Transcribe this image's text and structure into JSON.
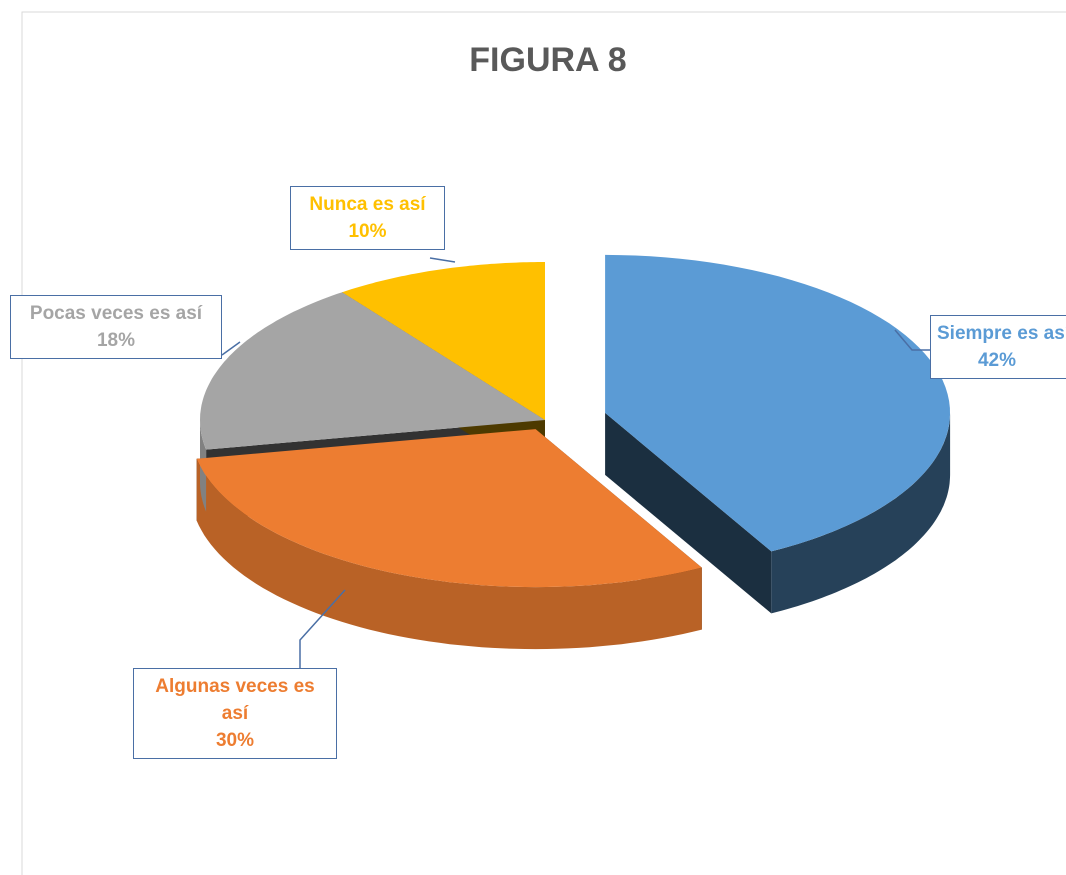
{
  "chart_data": {
    "type": "pie3d",
    "title": "FIGURA 8",
    "categories": [
      "Siempre es así",
      "Algunas veces es así",
      "Pocas veces es así",
      "Nunca es así"
    ],
    "values": [
      42,
      30,
      18,
      10
    ],
    "value_labels": [
      "42%",
      "30%",
      "18%",
      "10%"
    ],
    "colors": [
      "#5b9bd5",
      "#ed7d31",
      "#a5a5a5",
      "#ffc000"
    ]
  }
}
